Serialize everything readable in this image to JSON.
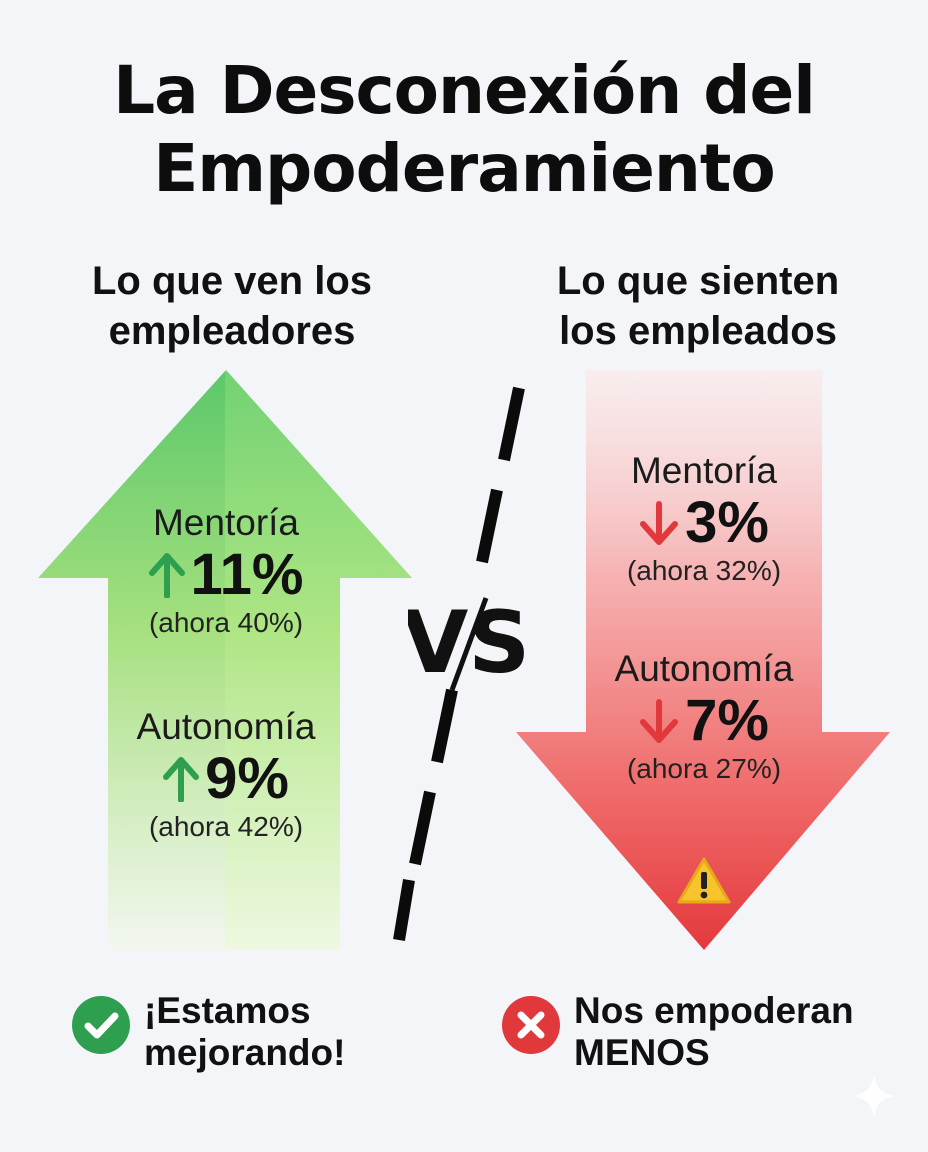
{
  "title": {
    "line1": "La Desconexión del",
    "line2": "Empoderamiento"
  },
  "left": {
    "heading_line1": "Lo que ven los",
    "heading_line2": "empleadores",
    "color": "#2e9e4f",
    "stats": [
      {
        "label": "Mentoría",
        "direction": "up",
        "value": "11%",
        "note": "(ahora 40%)"
      },
      {
        "label": "Autonomía",
        "direction": "up",
        "value": "9%",
        "note": "(ahora 42%)"
      }
    ],
    "footer_line1": "¡Estamos",
    "footer_line2": "mejorando!",
    "footer_icon": "check-icon"
  },
  "right": {
    "heading_line1": "Lo que sienten",
    "heading_line2": "los empleados",
    "color": "#e0383b",
    "stats": [
      {
        "label": "Mentoría",
        "direction": "down",
        "value": "3%",
        "note": "(ahora 32%)"
      },
      {
        "label": "Autonomía",
        "direction": "down",
        "value": "7%",
        "note": "(ahora 27%)"
      }
    ],
    "warning_icon": "warning-icon",
    "footer_line1": "Nos empoderan",
    "footer_line2": "MENOS",
    "footer_icon": "x-icon"
  },
  "vs": "VS"
}
